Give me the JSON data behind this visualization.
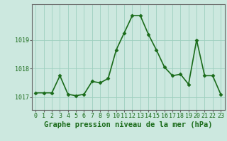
{
  "x": [
    0,
    1,
    2,
    3,
    4,
    5,
    6,
    7,
    8,
    9,
    10,
    11,
    12,
    13,
    14,
    15,
    16,
    17,
    18,
    19,
    20,
    21,
    22,
    23
  ],
  "y": [
    1017.15,
    1017.15,
    1017.15,
    1017.75,
    1017.1,
    1017.05,
    1017.1,
    1017.55,
    1017.5,
    1017.65,
    1018.65,
    1019.25,
    1019.85,
    1019.85,
    1019.2,
    1018.65,
    1018.05,
    1017.75,
    1017.8,
    1017.45,
    1019.0,
    1017.75,
    1017.75,
    1017.1
  ],
  "bg_color": "#cce8df",
  "line_color": "#1a6b1a",
  "marker_color": "#1a6b1a",
  "grid_color": "#9ecfbf",
  "axis_color": "#666666",
  "ylabel_ticks": [
    1017,
    1018,
    1019
  ],
  "ylim": [
    1016.55,
    1020.25
  ],
  "xlim": [
    -0.5,
    23.5
  ],
  "xlabel": "Graphe pression niveau de la mer (hPa)",
  "xlabel_fontsize": 7.5,
  "tick_fontsize": 6.0,
  "line_width": 1.2,
  "marker_size": 2.5
}
